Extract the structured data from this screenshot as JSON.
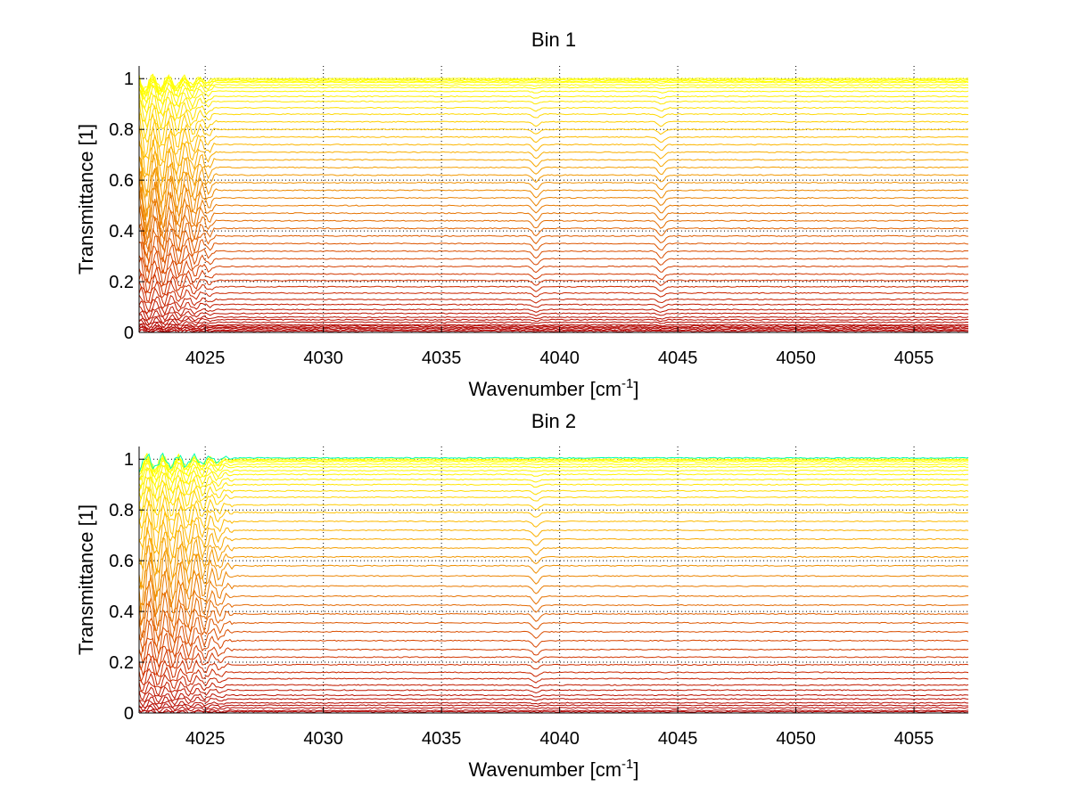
{
  "chart_data": [
    {
      "type": "line",
      "title": "Bin 1",
      "xlabel": "Wavenumber [cm",
      "xlabel_superscript": "-1",
      "xlabel_suffix": "]",
      "ylabel": "Transmittance [1]",
      "xlim": [
        4022.2,
        4057.3
      ],
      "ylim": [
        0,
        1.05
      ],
      "xticks": [
        4025,
        4030,
        4035,
        4040,
        4045,
        4050,
        4055
      ],
      "xtick_labels": [
        "4025",
        "4030",
        "4035",
        "4040",
        "4045",
        "4050",
        "4055"
      ],
      "yticks": [
        0,
        0.2,
        0.4,
        0.6,
        0.8,
        1
      ],
      "ytick_labels": [
        "0",
        "0.2",
        "0.4",
        "0.6",
        "0.8",
        "1"
      ],
      "grid": true,
      "colormap": [
        "#b00000",
        "#d03000",
        "#e06000",
        "#f09000",
        "#ffc000",
        "#ffff00",
        "#00ffb0",
        "#0080ff"
      ],
      "features": {
        "oscillation_region": [
          4022.2,
          4025.5
        ],
        "absorption_lines": [
          4039.0,
          4044.3
        ]
      },
      "series_levels": [
        0.005,
        0.01,
        0.015,
        0.02,
        0.025,
        0.03,
        0.04,
        0.05,
        0.06,
        0.075,
        0.09,
        0.11,
        0.13,
        0.155,
        0.18,
        0.205,
        0.23,
        0.26,
        0.29,
        0.32,
        0.35,
        0.38,
        0.41,
        0.44,
        0.47,
        0.5,
        0.53,
        0.56,
        0.59,
        0.62,
        0.65,
        0.68,
        0.71,
        0.74,
        0.77,
        0.8,
        0.83,
        0.86,
        0.885,
        0.91,
        0.93,
        0.95,
        0.965,
        0.975,
        0.985,
        0.99,
        0.995,
        1.0
      ]
    },
    {
      "type": "line",
      "title": "Bin 2",
      "xlabel": "Wavenumber [cm",
      "xlabel_superscript": "-1",
      "xlabel_suffix": "]",
      "ylabel": "Transmittance [1]",
      "xlim": [
        4022.2,
        4057.3
      ],
      "ylim": [
        0,
        1.05
      ],
      "xticks": [
        4025,
        4030,
        4035,
        4040,
        4045,
        4050,
        4055
      ],
      "xtick_labels": [
        "4025",
        "4030",
        "4035",
        "4040",
        "4045",
        "4050",
        "4055"
      ],
      "yticks": [
        0,
        0.2,
        0.4,
        0.6,
        0.8,
        1
      ],
      "ytick_labels": [
        "0",
        "0.2",
        "0.4",
        "0.6",
        "0.8",
        "1"
      ],
      "grid": true,
      "colormap": [
        "#b00000",
        "#d03000",
        "#e06000",
        "#f09000",
        "#ffc000",
        "#ffff00",
        "#00ffb0",
        "#0080ff"
      ],
      "features": {
        "oscillation_region": [
          4022.2,
          4026.2
        ],
        "absorption_lines": [
          4039.0
        ]
      },
      "series_levels": [
        0.005,
        0.01,
        0.02,
        0.03,
        0.04,
        0.055,
        0.07,
        0.09,
        0.11,
        0.135,
        0.16,
        0.19,
        0.22,
        0.25,
        0.285,
        0.32,
        0.355,
        0.39,
        0.425,
        0.46,
        0.5,
        0.54,
        0.58,
        0.615,
        0.65,
        0.685,
        0.72,
        0.755,
        0.79,
        0.82,
        0.85,
        0.875,
        0.9,
        0.92,
        0.94,
        0.955,
        0.97,
        0.98,
        0.99,
        0.995,
        1.0,
        1.005
      ]
    }
  ]
}
